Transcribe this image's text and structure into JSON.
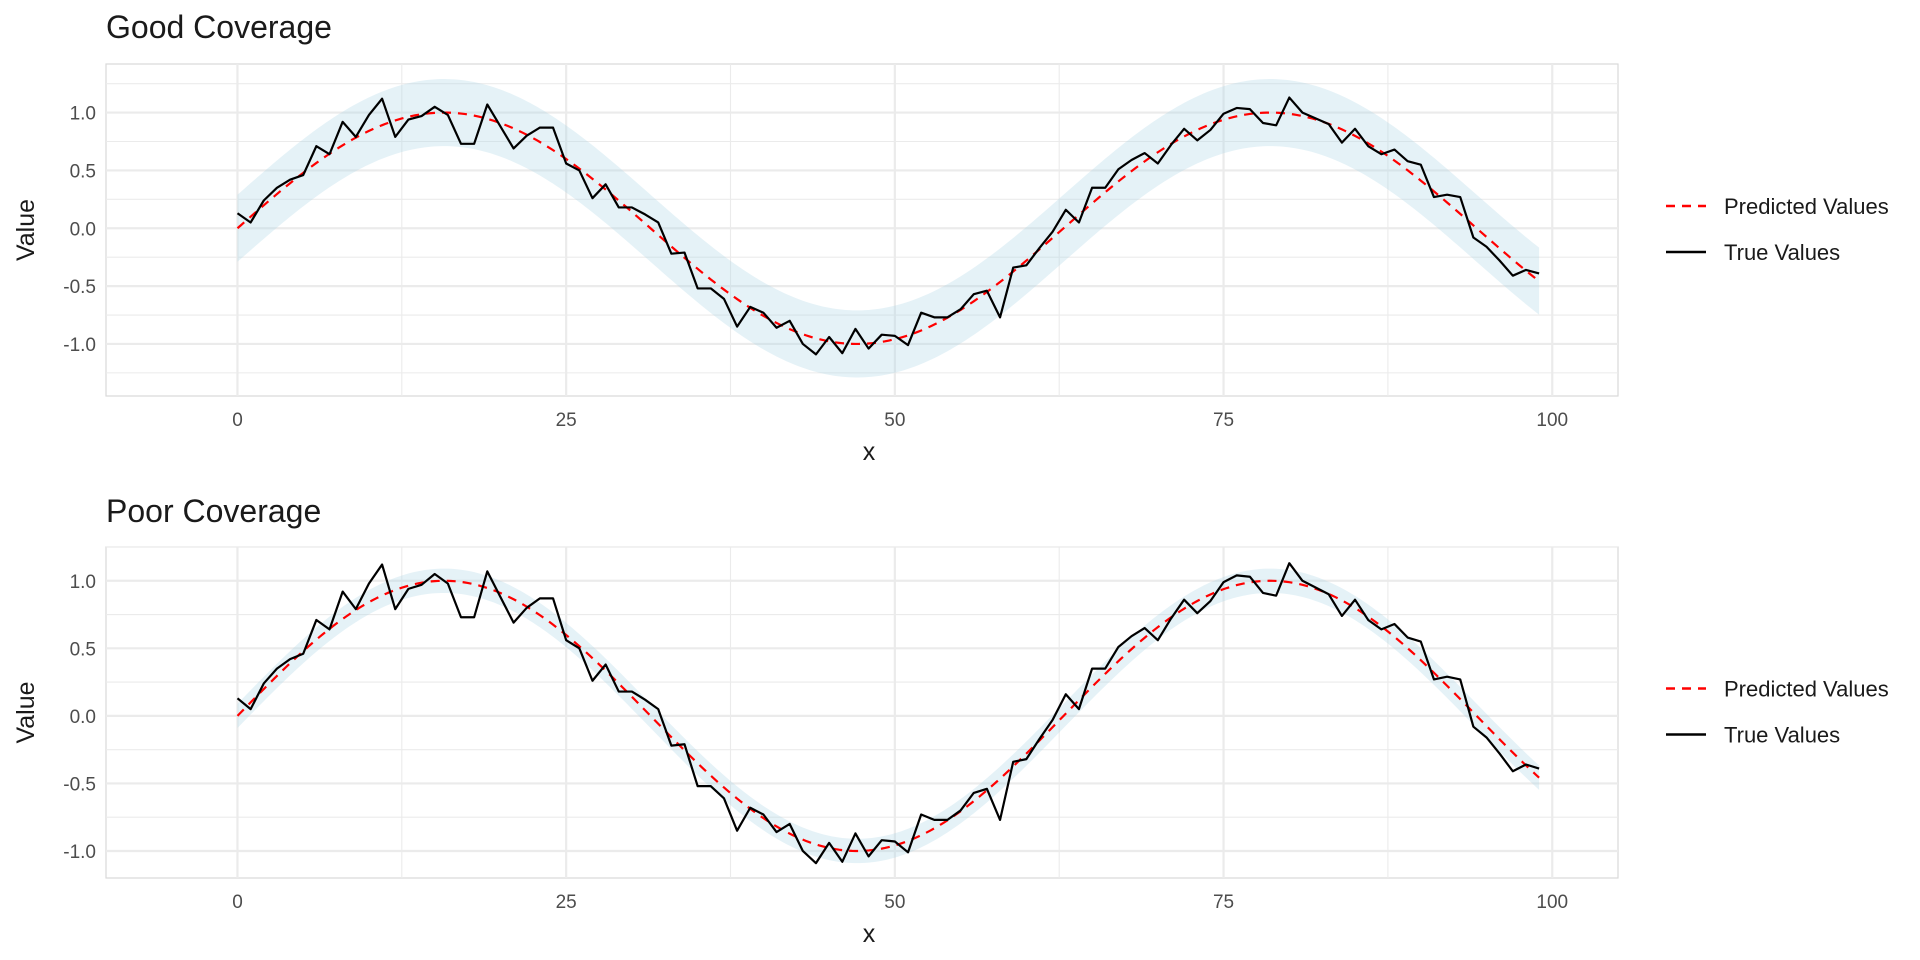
{
  "chart_data": [
    {
      "type": "line",
      "title": "Good Coverage",
      "xlabel": "x",
      "ylabel": "Value",
      "xlim": [
        -10,
        105
      ],
      "ylim": [
        -1.45,
        1.42
      ],
      "x_ticks": [
        "0",
        "25",
        "50",
        "75",
        "100"
      ],
      "y_ticks": [
        "1.0",
        "0.5",
        "0.0",
        "-0.5",
        "-1.0"
      ],
      "grid": true,
      "legend_position": "right",
      "band_halfwidth": 0.29,
      "colors": {
        "band": "#add8e6",
        "predicted": "#ff0000",
        "true": "#000000",
        "grid": "#ebebeb"
      },
      "series": [
        {
          "name": "Predicted Values",
          "style": "dashed",
          "color": "#ff0000"
        },
        {
          "name": "True Values",
          "style": "solid",
          "color": "#000000"
        }
      ],
      "predicted_frequency": 0.1,
      "x": [
        0,
        1,
        2,
        3,
        4,
        5,
        6,
        7,
        8,
        9,
        10,
        11,
        12,
        13,
        14,
        15,
        16,
        17,
        18,
        19,
        20,
        21,
        22,
        23,
        24,
        25,
        26,
        27,
        28,
        29,
        30,
        31,
        32,
        33,
        34,
        35,
        36,
        37,
        38,
        39,
        40,
        41,
        42,
        43,
        44,
        45,
        46,
        47,
        48,
        49,
        50,
        51,
        52,
        53,
        54,
        55,
        56,
        57,
        58,
        59,
        60,
        61,
        62,
        63,
        64,
        65,
        66,
        67,
        68,
        69,
        70,
        71,
        72,
        73,
        74,
        75,
        76,
        77,
        78,
        79,
        80,
        81,
        82,
        83,
        84,
        85,
        86,
        87,
        88,
        89,
        90,
        91,
        92,
        93,
        94,
        95,
        96,
        97,
        98,
        99
      ],
      "true_values": [
        0.13,
        0.05,
        0.24,
        0.35,
        0.42,
        0.46,
        0.71,
        0.64,
        0.92,
        0.79,
        0.98,
        1.12,
        0.79,
        0.94,
        0.97,
        1.05,
        0.98,
        0.73,
        0.73,
        1.07,
        0.88,
        0.69,
        0.8,
        0.87,
        0.87,
        0.56,
        0.5,
        0.26,
        0.38,
        0.18,
        0.18,
        0.12,
        0.05,
        -0.22,
        -0.21,
        -0.52,
        -0.52,
        -0.61,
        -0.85,
        -0.68,
        -0.73,
        -0.86,
        -0.8,
        -1.0,
        -1.09,
        -0.94,
        -1.08,
        -0.87,
        -1.04,
        -0.92,
        -0.93,
        -1.01,
        -0.73,
        -0.77,
        -0.77,
        -0.7,
        -0.57,
        -0.54,
        -0.77,
        -0.34,
        -0.32,
        -0.17,
        -0.03,
        0.16,
        0.05,
        0.35,
        0.35,
        0.51,
        0.59,
        0.65,
        0.56,
        0.72,
        0.86,
        0.76,
        0.85,
        0.99,
        1.04,
        1.03,
        0.91,
        0.89,
        1.13,
        1.0,
        0.95,
        0.9,
        0.74,
        0.86,
        0.71,
        0.64,
        0.68,
        0.58,
        0.55,
        0.27,
        0.29,
        0.27,
        -0.08,
        -0.16,
        -0.28,
        -0.41,
        -0.36,
        -0.39
      ]
    },
    {
      "type": "line",
      "title": "Poor Coverage",
      "xlabel": "x",
      "ylabel": "Value",
      "xlim": [
        -10,
        105
      ],
      "ylim": [
        -1.2,
        1.25
      ],
      "x_ticks": [
        "0",
        "25",
        "50",
        "75",
        "100"
      ],
      "y_ticks": [
        "1.0",
        "0.5",
        "0.0",
        "-0.5",
        "-1.0"
      ],
      "grid": true,
      "legend_position": "right",
      "band_halfwidth": 0.09,
      "colors": {
        "band": "#add8e6",
        "predicted": "#ff0000",
        "true": "#000000",
        "grid": "#ebebeb"
      },
      "series": [
        {
          "name": "Predicted Values",
          "style": "dashed",
          "color": "#ff0000"
        },
        {
          "name": "True Values",
          "style": "solid",
          "color": "#000000"
        }
      ],
      "predicted_frequency": 0.1,
      "x": [
        0,
        1,
        2,
        3,
        4,
        5,
        6,
        7,
        8,
        9,
        10,
        11,
        12,
        13,
        14,
        15,
        16,
        17,
        18,
        19,
        20,
        21,
        22,
        23,
        24,
        25,
        26,
        27,
        28,
        29,
        30,
        31,
        32,
        33,
        34,
        35,
        36,
        37,
        38,
        39,
        40,
        41,
        42,
        43,
        44,
        45,
        46,
        47,
        48,
        49,
        50,
        51,
        52,
        53,
        54,
        55,
        56,
        57,
        58,
        59,
        60,
        61,
        62,
        63,
        64,
        65,
        66,
        67,
        68,
        69,
        70,
        71,
        72,
        73,
        74,
        75,
        76,
        77,
        78,
        79,
        80,
        81,
        82,
        83,
        84,
        85,
        86,
        87,
        88,
        89,
        90,
        91,
        92,
        93,
        94,
        95,
        96,
        97,
        98,
        99
      ],
      "true_values": [
        0.13,
        0.05,
        0.24,
        0.35,
        0.42,
        0.46,
        0.71,
        0.64,
        0.92,
        0.79,
        0.98,
        1.12,
        0.79,
        0.94,
        0.97,
        1.05,
        0.98,
        0.73,
        0.73,
        1.07,
        0.88,
        0.69,
        0.8,
        0.87,
        0.87,
        0.56,
        0.5,
        0.26,
        0.38,
        0.18,
        0.18,
        0.12,
        0.05,
        -0.22,
        -0.21,
        -0.52,
        -0.52,
        -0.61,
        -0.85,
        -0.68,
        -0.73,
        -0.86,
        -0.8,
        -1.0,
        -1.09,
        -0.94,
        -1.08,
        -0.87,
        -1.04,
        -0.92,
        -0.93,
        -1.01,
        -0.73,
        -0.77,
        -0.77,
        -0.7,
        -0.57,
        -0.54,
        -0.77,
        -0.34,
        -0.32,
        -0.17,
        -0.03,
        0.16,
        0.05,
        0.35,
        0.35,
        0.51,
        0.59,
        0.65,
        0.56,
        0.72,
        0.86,
        0.76,
        0.85,
        0.99,
        1.04,
        1.03,
        0.91,
        0.89,
        1.13,
        1.0,
        0.95,
        0.9,
        0.74,
        0.86,
        0.71,
        0.64,
        0.68,
        0.58,
        0.55,
        0.27,
        0.29,
        0.27,
        -0.08,
        -0.16,
        -0.28,
        -0.41,
        -0.36,
        -0.39
      ]
    }
  ]
}
